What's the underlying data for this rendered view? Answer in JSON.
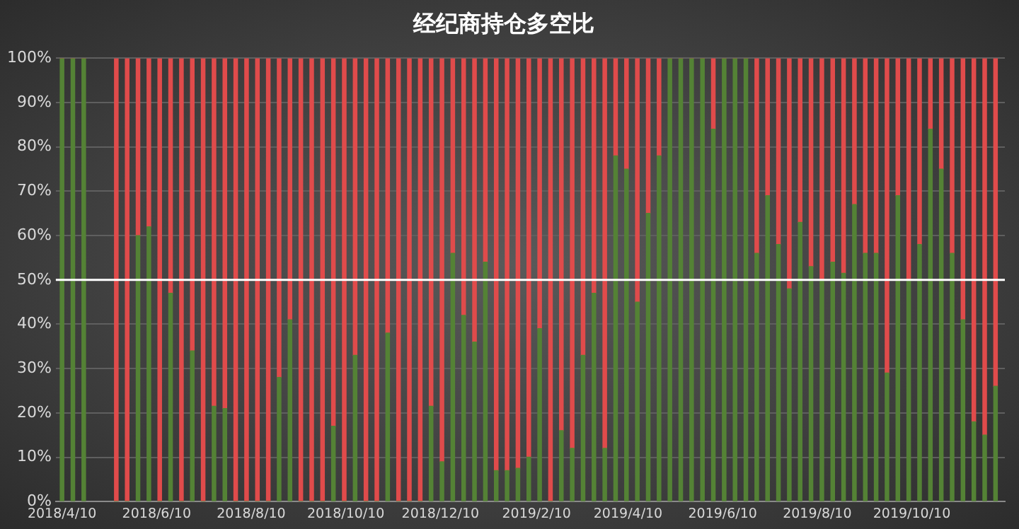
{
  "chart_data": {
    "type": "bar",
    "title": "经纪商持仓多空比",
    "stacked": true,
    "x": [
      "2018-04-10",
      "2018-04-17",
      "2018-04-24",
      "2018-05-15",
      "2018-05-22",
      "2018-05-29",
      "2018-06-05",
      "2018-06-12",
      "2018-06-19",
      "2018-06-26",
      "2018-07-03",
      "2018-07-10",
      "2018-07-17",
      "2018-07-24",
      "2018-07-31",
      "2018-08-07",
      "2018-08-14",
      "2018-08-21",
      "2018-08-28",
      "2018-09-04",
      "2018-09-11",
      "2018-09-18",
      "2018-09-25",
      "2018-10-02",
      "2018-10-09",
      "2018-10-16",
      "2018-10-23",
      "2018-10-30",
      "2018-11-06",
      "2018-11-13",
      "2018-11-20",
      "2018-11-27",
      "2018-12-04",
      "2018-12-11",
      "2018-12-18",
      "2018-12-25",
      "2019-01-01",
      "2019-01-08",
      "2019-01-15",
      "2019-01-22",
      "2019-01-29",
      "2019-02-05",
      "2019-02-12",
      "2019-02-19",
      "2019-02-26",
      "2019-03-05",
      "2019-03-12",
      "2019-03-19",
      "2019-03-26",
      "2019-04-02",
      "2019-04-09",
      "2019-04-16",
      "2019-04-23",
      "2019-04-30",
      "2019-05-07",
      "2019-05-14",
      "2019-05-21",
      "2019-05-28",
      "2019-06-04",
      "2019-06-11",
      "2019-06-18",
      "2019-06-25",
      "2019-07-02",
      "2019-07-09",
      "2019-07-16",
      "2019-07-23",
      "2019-07-30",
      "2019-08-06",
      "2019-08-13",
      "2019-08-20",
      "2019-08-27",
      "2019-09-03",
      "2019-09-10",
      "2019-09-17",
      "2019-09-24",
      "2019-10-01",
      "2019-10-08",
      "2019-10-15",
      "2019-10-22",
      "2019-10-29",
      "2019-11-05",
      "2019-11-12",
      "2019-11-19",
      "2019-11-26",
      "2019-12-03"
    ],
    "series": [
      {
        "color": "#548235",
        "values": [
          100,
          100,
          100,
          0,
          0,
          60,
          62,
          0,
          47,
          0,
          34,
          0,
          21.5,
          21,
          0,
          0,
          0,
          0,
          28,
          41,
          0,
          0,
          0,
          17,
          0,
          33,
          0,
          0,
          38,
          0,
          0,
          0,
          21.5,
          9,
          56,
          42,
          36,
          54,
          7,
          7,
          7.5,
          10,
          39,
          0,
          16,
          12,
          33,
          47,
          12,
          78,
          75,
          45,
          65,
          78,
          100,
          100,
          100,
          100,
          84,
          100,
          100,
          100,
          56,
          69,
          58,
          48,
          63,
          53,
          50,
          54,
          51.5,
          67,
          56,
          56,
          29,
          69,
          50,
          58,
          84,
          75,
          56,
          41,
          18,
          15,
          26
        ]
      },
      {
        "color": "#e04b4b",
        "values": [
          0,
          0,
          0,
          100,
          100,
          40,
          38,
          100,
          53,
          100,
          66,
          100,
          78.5,
          79,
          100,
          100,
          100,
          100,
          72,
          59,
          100,
          100,
          100,
          83,
          100,
          67,
          100,
          100,
          62,
          100,
          100,
          100,
          78.5,
          91,
          44,
          58,
          64,
          46,
          93,
          93,
          92.5,
          90,
          61,
          100,
          84,
          88,
          67,
          53,
          88,
          22,
          25,
          55,
          35,
          22,
          0,
          0,
          0,
          0,
          16,
          0,
          0,
          0,
          44,
          31,
          42,
          52,
          37,
          47,
          50,
          46,
          48.5,
          33,
          44,
          44,
          71,
          31,
          50,
          42,
          16,
          25,
          44,
          59,
          82,
          85,
          74
        ]
      }
    ],
    "xlim": [
      "2018-04-06",
      "2019-12-09"
    ],
    "xticks": [
      {
        "value": "2018-04-10",
        "label": "2018/4/10"
      },
      {
        "value": "2018-06-10",
        "label": "2018/6/10"
      },
      {
        "value": "2018-08-10",
        "label": "2018/8/10"
      },
      {
        "value": "2018-10-10",
        "label": "2018/10/10"
      },
      {
        "value": "2018-12-10",
        "label": "2018/12/10"
      },
      {
        "value": "2019-02-10",
        "label": "2019/2/10"
      },
      {
        "value": "2019-04-10",
        "label": "2019/4/10"
      },
      {
        "value": "2019-06-10",
        "label": "2019/6/10"
      },
      {
        "value": "2019-08-10",
        "label": "2019/8/10"
      },
      {
        "value": "2019-10-10",
        "label": "2019/10/10"
      }
    ],
    "ylim": [
      0,
      100
    ],
    "yticks": [
      {
        "value": 0,
        "label": "0%"
      },
      {
        "value": 10,
        "label": "10%"
      },
      {
        "value": 20,
        "label": "20%"
      },
      {
        "value": 30,
        "label": "30%"
      },
      {
        "value": 40,
        "label": "40%"
      },
      {
        "value": 50,
        "label": "50%"
      },
      {
        "value": 60,
        "label": "60%"
      },
      {
        "value": 70,
        "label": "70%"
      },
      {
        "value": 80,
        "label": "80%"
      },
      {
        "value": 90,
        "label": "90%"
      },
      {
        "value": 100,
        "label": "100%"
      }
    ],
    "grid": "y",
    "legend": false,
    "ref_lines": [
      {
        "axis": "y",
        "value": 50,
        "color": "#ffffff"
      }
    ]
  }
}
